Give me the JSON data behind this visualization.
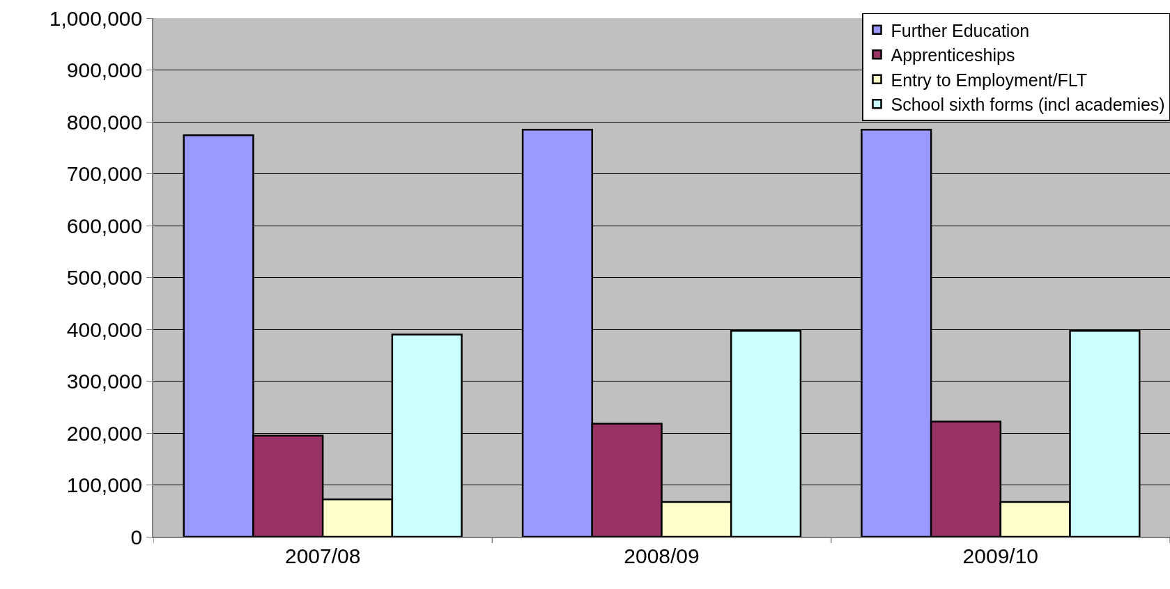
{
  "chart_data": {
    "type": "bar",
    "categories": [
      "2007/08",
      "2008/09",
      "2009/10"
    ],
    "series": [
      {
        "name": "Further Education",
        "color": "#9999ff",
        "values": [
          774000,
          785000,
          785000
        ]
      },
      {
        "name": "Apprenticeships",
        "color": "#993366",
        "values": [
          195000,
          218000,
          222000
        ]
      },
      {
        "name": "Entry to Employment/FLT",
        "color": "#ffffcc",
        "values": [
          72000,
          67000,
          67000
        ]
      },
      {
        "name": "School sixth forms (incl academies)",
        "color": "#ccffff",
        "values": [
          390000,
          397000,
          397000
        ]
      }
    ],
    "ylim": [
      0,
      1000000
    ],
    "yticks": [
      {
        "value": 0,
        "label": "0"
      },
      {
        "value": 100000,
        "label": "100,000"
      },
      {
        "value": 200000,
        "label": "200,000"
      },
      {
        "value": 300000,
        "label": "300,000"
      },
      {
        "value": 400000,
        "label": "400,000"
      },
      {
        "value": 500000,
        "label": "500,000"
      },
      {
        "value": 600000,
        "label": "600,000"
      },
      {
        "value": 700000,
        "label": "700,000"
      },
      {
        "value": 800000,
        "label": "800,000"
      },
      {
        "value": 900000,
        "label": "900,000"
      },
      {
        "value": 1000000,
        "label": "1,000,000"
      }
    ],
    "grid": "y",
    "legend": "top right"
  }
}
